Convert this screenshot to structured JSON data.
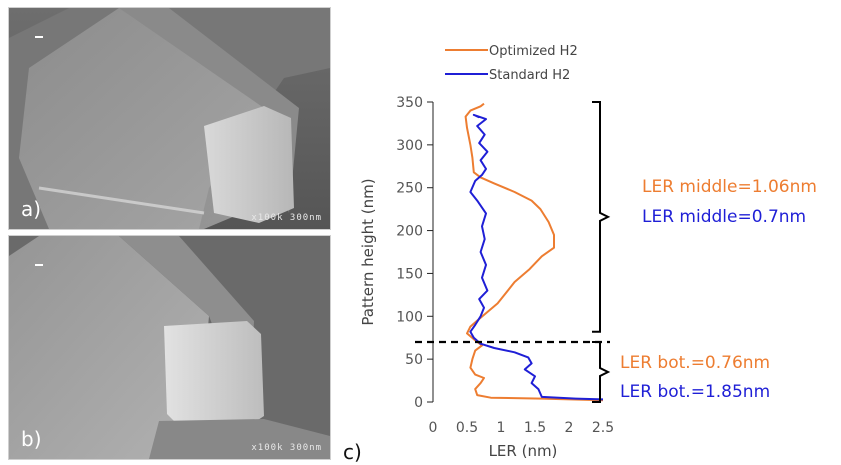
{
  "panels": [
    {
      "letter": "a)",
      "scale_text": "x100k 300nm"
    },
    {
      "letter": "b)",
      "scale_text": "x100k 300nm"
    },
    {
      "letter": "c)"
    }
  ],
  "colors": {
    "optimized": "#ed7d31",
    "standard": "#1f1fd6",
    "axis": "#000000",
    "tick_text": "#555555"
  },
  "chart_data": {
    "type": "line",
    "xlabel": "LER (nm)",
    "ylabel": "Pattern height (nm)",
    "xlim": [
      0,
      2.5
    ],
    "ylim": [
      0,
      350
    ],
    "xticks": [
      "0",
      "0.5",
      "1",
      "1.5",
      "2",
      "2.5"
    ],
    "yticks": [
      "0",
      "50",
      "100",
      "150",
      "200",
      "250",
      "300",
      "350"
    ],
    "grid": false,
    "legend_position": "top-left",
    "series": [
      {
        "name": "Optimized H2",
        "color": "#ed7d31",
        "points": [
          [
            2.5,
            2
          ],
          [
            1.6,
            4
          ],
          [
            0.85,
            5
          ],
          [
            0.65,
            8
          ],
          [
            0.62,
            15
          ],
          [
            0.7,
            22
          ],
          [
            0.75,
            28
          ],
          [
            0.62,
            32
          ],
          [
            0.55,
            40
          ],
          [
            0.58,
            50
          ],
          [
            0.62,
            60
          ],
          [
            0.72,
            66
          ],
          [
            0.62,
            72
          ],
          [
            0.5,
            80
          ],
          [
            0.55,
            88
          ],
          [
            0.65,
            95
          ],
          [
            0.8,
            105
          ],
          [
            0.95,
            115
          ],
          [
            1.05,
            125
          ],
          [
            1.2,
            140
          ],
          [
            1.42,
            155
          ],
          [
            1.6,
            170
          ],
          [
            1.78,
            180
          ],
          [
            1.78,
            195
          ],
          [
            1.7,
            210
          ],
          [
            1.58,
            225
          ],
          [
            1.45,
            235
          ],
          [
            1.2,
            245
          ],
          [
            0.9,
            255
          ],
          [
            0.7,
            262
          ],
          [
            0.6,
            268
          ],
          [
            0.58,
            285
          ],
          [
            0.55,
            300
          ],
          [
            0.5,
            320
          ],
          [
            0.48,
            333
          ],
          [
            0.55,
            340
          ],
          [
            0.7,
            345
          ],
          [
            0.75,
            348
          ]
        ]
      },
      {
        "name": "Standard H2",
        "color": "#1f1fd6",
        "points": [
          [
            2.5,
            3
          ],
          [
            2.1,
            4
          ],
          [
            1.6,
            6
          ],
          [
            1.55,
            15
          ],
          [
            1.45,
            22
          ],
          [
            1.5,
            30
          ],
          [
            1.35,
            38
          ],
          [
            1.45,
            45
          ],
          [
            1.4,
            52
          ],
          [
            1.2,
            58
          ],
          [
            0.9,
            63
          ],
          [
            0.7,
            68
          ],
          [
            0.6,
            75
          ],
          [
            0.55,
            82
          ],
          [
            0.62,
            90
          ],
          [
            0.7,
            100
          ],
          [
            0.75,
            110
          ],
          [
            0.68,
            120
          ],
          [
            0.8,
            130
          ],
          [
            0.72,
            145
          ],
          [
            0.78,
            160
          ],
          [
            0.7,
            175
          ],
          [
            0.76,
            190
          ],
          [
            0.72,
            205
          ],
          [
            0.78,
            220
          ],
          [
            0.65,
            235
          ],
          [
            0.55,
            245
          ],
          [
            0.62,
            258
          ],
          [
            0.72,
            265
          ],
          [
            0.78,
            272
          ],
          [
            0.7,
            282
          ],
          [
            0.8,
            292
          ],
          [
            0.68,
            302
          ],
          [
            0.76,
            312
          ],
          [
            0.65,
            322
          ],
          [
            0.78,
            330
          ],
          [
            0.6,
            335
          ],
          [
            0.68,
            332
          ]
        ]
      }
    ],
    "annotations": [
      {
        "text": "LER middle=1.06nm",
        "color": "#ed7d31"
      },
      {
        "text": "LER middle=0.7nm",
        "color": "#1f1fd6"
      },
      {
        "text": "LER bot.=0.76nm",
        "color": "#ed7d31"
      },
      {
        "text": "LER ",
        "text2": "bot.=1.85nm",
        "color": "#1f1fd6"
      }
    ],
    "divider_y": 70,
    "bracket_upper": [
      82,
      350
    ],
    "bracket_lower": [
      0,
      70
    ]
  }
}
